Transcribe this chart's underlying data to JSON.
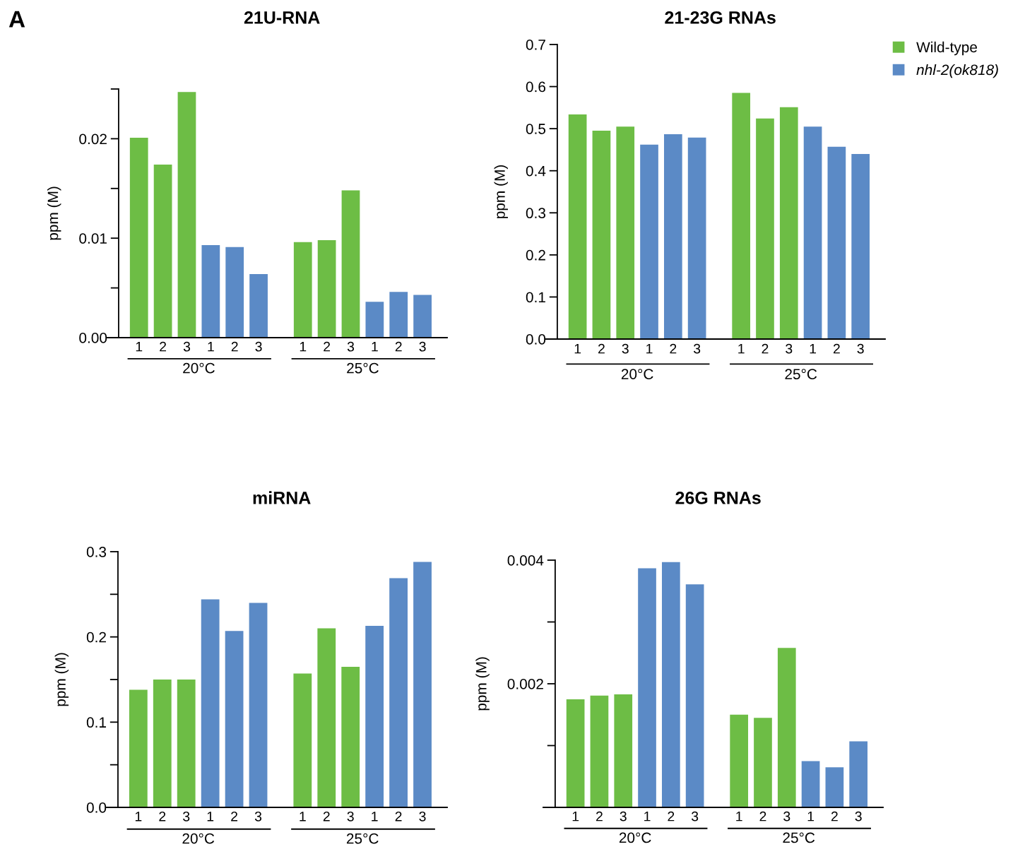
{
  "chart_data": [
    {
      "type": "other",
      "title": "A"
    },
    {
      "type": "bar",
      "title": "21U-RNA",
      "ylabel": "ppm (M)",
      "categories": [
        "1",
        "2",
        "3",
        "1",
        "2",
        "3",
        "1",
        "2",
        "3",
        "1",
        "2",
        "3"
      ],
      "annotations": [
        "20°C",
        "25°C"
      ],
      "ylim": [
        0,
        0.025
      ],
      "yticks": [
        {
          "value": 0,
          "label": "0.00"
        },
        {
          "value": 0.005,
          "label": null
        },
        {
          "value": 0.01,
          "label": "0.01"
        },
        {
          "value": 0.015,
          "label": null
        },
        {
          "value": 0.02,
          "label": "0.02"
        },
        {
          "value": 0.025,
          "label": null
        }
      ],
      "series": [
        {
          "color": "#6dbd45",
          "values": [
            0.0201,
            0.0174,
            0.0247,
            null,
            null,
            null,
            0.0096,
            0.0098,
            0.0148,
            null,
            null,
            null
          ]
        },
        {
          "color": "#5b8ac6",
          "values": [
            null,
            null,
            null,
            0.0093,
            0.0091,
            0.0064,
            null,
            null,
            null,
            0.0036,
            0.0046,
            0.0043
          ]
        }
      ]
    },
    {
      "type": "bar",
      "title": "21-23G RNAs",
      "ylabel": "ppm (M)",
      "categories": [
        "1",
        "2",
        "3",
        "1",
        "2",
        "3",
        "1",
        "2",
        "3",
        "1",
        "2",
        "3"
      ],
      "annotations": [
        "20°C",
        "25°C"
      ],
      "ylim": [
        0,
        0.7
      ],
      "yticks": [
        {
          "value": 0,
          "label": "0.0"
        },
        0.1,
        0.2,
        0.3,
        0.4,
        0.5,
        0.6,
        0.7
      ],
      "legend": "top right",
      "series": [
        {
          "name": "Wild-type",
          "color": "#6dbd45",
          "values": [
            0.534,
            0.495,
            0.505,
            null,
            null,
            null,
            0.585,
            0.524,
            0.551,
            null,
            null,
            null
          ]
        },
        {
          "name": "nhl-2(ok818)",
          "color": "#5b8ac6",
          "values": [
            null,
            null,
            null,
            0.462,
            0.487,
            0.479,
            null,
            null,
            null,
            0.505,
            0.457,
            0.44
          ]
        }
      ]
    },
    {
      "type": "bar",
      "title": "miRNA",
      "ylabel": "ppm (M)",
      "categories": [
        "1",
        "2",
        "3",
        "1",
        "2",
        "3",
        "1",
        "2",
        "3",
        "1",
        "2",
        "3"
      ],
      "annotations": [
        "20°C",
        "25°C"
      ],
      "ylim": [
        0,
        0.3
      ],
      "yticks": [
        {
          "value": 0,
          "label": "0.0"
        },
        {
          "value": 0.05,
          "label": null
        },
        0.1,
        {
          "value": 0.15,
          "label": null
        },
        0.2,
        {
          "value": 0.25,
          "label": null
        },
        0.3
      ],
      "series": [
        {
          "color": "#6dbd45",
          "values": [
            0.138,
            0.15,
            0.15,
            null,
            null,
            null,
            0.157,
            0.21,
            0.165,
            null,
            null,
            null
          ]
        },
        {
          "color": "#5b8ac6",
          "values": [
            null,
            null,
            null,
            0.244,
            0.207,
            0.24,
            null,
            null,
            null,
            0.213,
            0.269,
            0.288
          ]
        }
      ]
    },
    {
      "type": "bar",
      "title": "26G RNAs",
      "ylabel": "ppm (M)",
      "categories": [
        "1",
        "2",
        "3",
        "1",
        "2",
        "3",
        "1",
        "2",
        "3",
        "1",
        "2",
        "3"
      ],
      "annotations": [
        "20°C",
        "25°C"
      ],
      "ylim": [
        0,
        0.004
      ],
      "yticks": [
        {
          "value": 0,
          "label": null
        },
        {
          "value": 0.001,
          "label": null
        },
        0.002,
        {
          "value": 0.003,
          "label": null
        },
        0.004
      ],
      "series": [
        {
          "color": "#6dbd45",
          "values": [
            0.00175,
            0.00181,
            0.00183,
            null,
            null,
            null,
            0.0015,
            0.00145,
            0.00258,
            null,
            null,
            null
          ]
        },
        {
          "color": "#5b8ac6",
          "values": [
            null,
            null,
            null,
            0.00387,
            0.00397,
            0.00361,
            null,
            null,
            null,
            0.00075,
            0.00065,
            0.00107
          ]
        }
      ]
    }
  ]
}
